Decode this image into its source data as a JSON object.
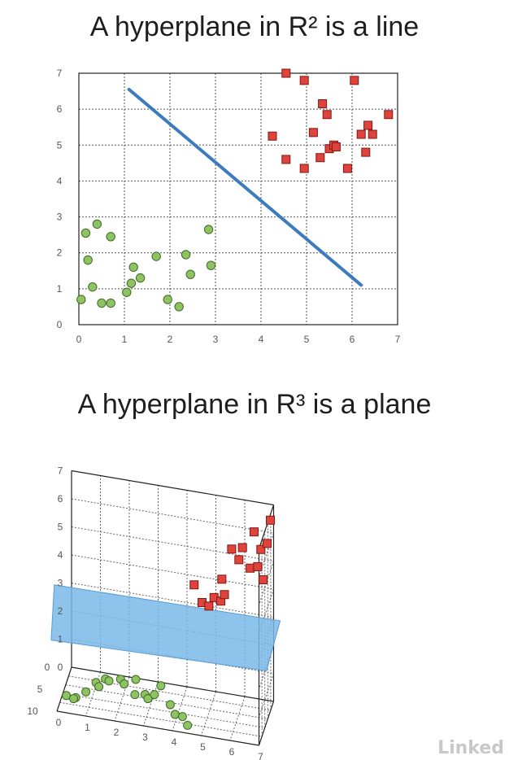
{
  "titles": {
    "chart_2d": "A hyperplane in R² is a line",
    "chart_3d": "A hyperplane in R³ is a plane"
  },
  "watermark": "Linked",
  "colors": {
    "green_point": "#8dc363",
    "green_stroke": "#3f6a25",
    "red_point": "#e0433b",
    "red_stroke": "#7a1a14",
    "line": "#3d7bbf",
    "plane": "#7ab8e8"
  },
  "chart_data": [
    {
      "type": "scatter",
      "title": "A hyperplane in R² is a line",
      "xlim": [
        0,
        7
      ],
      "ylim": [
        0,
        7
      ],
      "xticks": [
        "0",
        "1",
        "2",
        "3",
        "4",
        "5",
        "6",
        "7"
      ],
      "yticks": [
        "0",
        "1",
        "2",
        "3",
        "4",
        "5",
        "6",
        "7"
      ],
      "grid": true,
      "series": [
        {
          "marker": "circle",
          "points": [
            [
              0.05,
              0.7
            ],
            [
              0.15,
              2.55
            ],
            [
              0.2,
              1.8
            ],
            [
              0.3,
              1.05
            ],
            [
              0.4,
              2.8
            ],
            [
              0.5,
              0.6
            ],
            [
              0.7,
              0.6
            ],
            [
              0.7,
              2.45
            ],
            [
              1.05,
              0.9
            ],
            [
              1.15,
              1.15
            ],
            [
              1.2,
              1.6
            ],
            [
              1.35,
              1.3
            ],
            [
              1.7,
              1.9
            ],
            [
              1.95,
              0.7
            ],
            [
              2.2,
              0.5
            ],
            [
              2.35,
              1.95
            ],
            [
              2.45,
              1.4
            ],
            [
              2.85,
              2.65
            ],
            [
              2.9,
              1.65
            ]
          ]
        },
        {
          "marker": "square",
          "points": [
            [
              4.25,
              5.25
            ],
            [
              4.55,
              4.6
            ],
            [
              4.55,
              7.0
            ],
            [
              4.95,
              6.8
            ],
            [
              4.95,
              4.35
            ],
            [
              5.15,
              5.35
            ],
            [
              5.3,
              4.65
            ],
            [
              5.35,
              6.15
            ],
            [
              5.45,
              5.85
            ],
            [
              5.5,
              4.9
            ],
            [
              5.6,
              5.0
            ],
            [
              5.65,
              4.95
            ],
            [
              5.9,
              4.35
            ],
            [
              6.05,
              6.8
            ],
            [
              6.2,
              5.3
            ],
            [
              6.3,
              4.8
            ],
            [
              6.35,
              5.55
            ],
            [
              6.45,
              5.3
            ],
            [
              6.8,
              5.85
            ]
          ]
        }
      ],
      "line": {
        "x": [
          1.1,
          6.2
        ],
        "y": [
          6.55,
          1.1
        ]
      }
    },
    {
      "type": "scatter",
      "title": "A hyperplane in R³ is a plane",
      "zlim": [
        0,
        7
      ],
      "xlim": [
        0,
        7
      ],
      "ylim": [
        0,
        10
      ],
      "zticks": [
        "0",
        "1",
        "2",
        "3",
        "4",
        "5",
        "6",
        "7"
      ],
      "xticks": [
        "0",
        "1",
        "2",
        "3",
        "4",
        "5",
        "6",
        "7"
      ],
      "yticks": [
        "0",
        "5",
        "10"
      ],
      "grid": true,
      "plane_z": 2.5,
      "series": [
        {
          "marker": "circle",
          "points": [
            [
              0.2,
              7.5,
              0.2
            ],
            [
              0.5,
              7.0,
              0.1
            ],
            [
              0.5,
              8.5,
              0.3
            ],
            [
              0.8,
              6.0,
              0.2
            ],
            [
              1.0,
              3.0,
              0.1
            ],
            [
              1.2,
              5.0,
              0.3
            ],
            [
              1.3,
              2.5,
              0.2
            ],
            [
              1.5,
              4.0,
              0.4
            ],
            [
              1.8,
              2.0,
              0.2
            ],
            [
              2.0,
              3.5,
              0.3
            ],
            [
              2.3,
              1.5,
              0.2
            ],
            [
              2.5,
              6.0,
              0.4
            ],
            [
              2.8,
              5.0,
              0.3
            ],
            [
              3.0,
              7.0,
              0.5
            ],
            [
              3.2,
              6.5,
              0.6
            ],
            [
              3.5,
              8.0,
              1.2
            ],
            [
              3.8,
              7.5,
              0.5
            ],
            [
              4.0,
              8.2,
              0.3
            ],
            [
              4.3,
              9.0,
              0.4
            ],
            [
              4.5,
              9.5,
              0.2
            ]
          ]
        },
        {
          "marker": "square",
          "points": [
            [
              4.5,
              5.0,
              4.5
            ],
            [
              4.8,
              5.5,
              4.0
            ],
            [
              5.0,
              4.8,
              3.8
            ],
            [
              5.2,
              5.2,
              4.2
            ],
            [
              5.4,
              4.5,
              4.0
            ],
            [
              5.5,
              5.8,
              5.0
            ],
            [
              5.6,
              6.0,
              4.5
            ],
            [
              5.8,
              5.0,
              6.0
            ],
            [
              6.0,
              4.0,
              5.5
            ],
            [
              6.2,
              5.5,
              6.2
            ],
            [
              6.4,
              4.2,
              5.3
            ],
            [
              6.5,
              3.5,
              6.5
            ],
            [
              6.6,
              3.0,
              5.2
            ],
            [
              6.7,
              2.8,
              5.8
            ],
            [
              6.8,
              3.2,
              4.8
            ],
            [
              6.9,
              2.5,
              6.0
            ],
            [
              7.0,
              2.2,
              6.8
            ]
          ]
        }
      ]
    }
  ]
}
